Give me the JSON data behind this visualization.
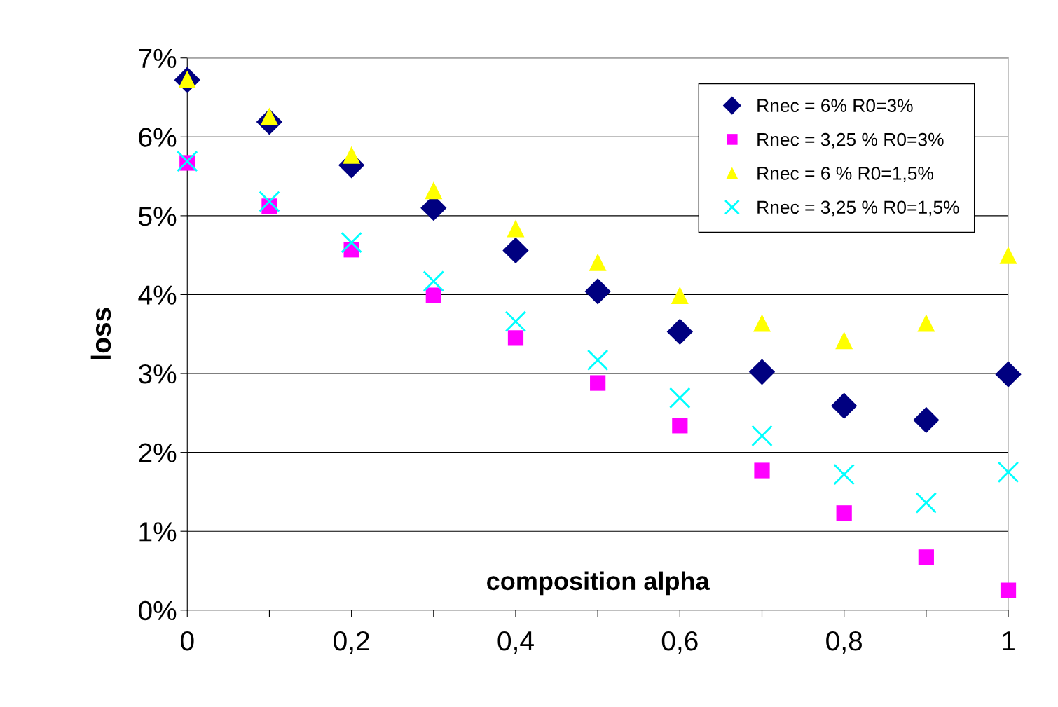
{
  "chart_data": {
    "type": "scatter",
    "xlabel": "composition alpha",
    "ylabel": "loss",
    "x": [
      0,
      0.1,
      0.2,
      0.3,
      0.4,
      0.5,
      0.6,
      0.7,
      0.8,
      0.9,
      1
    ],
    "series": [
      {
        "name": "Rnec = 6% R0=3%",
        "color": "#000080",
        "marker": "diamond",
        "values": [
          6.72,
          6.19,
          5.64,
          5.1,
          4.56,
          4.04,
          3.53,
          3.02,
          2.59,
          2.41,
          2.99
        ]
      },
      {
        "name": "Rnec = 3,25 % R0=3%",
        "color": "#ff00ff",
        "marker": "square",
        "values": [
          5.67,
          5.12,
          4.57,
          3.99,
          3.45,
          2.88,
          2.34,
          1.77,
          1.23,
          0.67,
          0.25
        ]
      },
      {
        "name": "Rnec = 6 % R0=1,5%",
        "color": "#ffff00",
        "marker": "triangle",
        "values": [
          6.73,
          6.26,
          5.77,
          5.32,
          4.84,
          4.41,
          3.99,
          3.64,
          3.42,
          3.64,
          4.5
        ]
      },
      {
        "name": "Rnec = 3,25 % R0=1,5%",
        "color": "#00ffff",
        "marker": "cross",
        "values": [
          5.69,
          5.18,
          4.66,
          4.17,
          3.66,
          3.17,
          2.69,
          2.21,
          1.72,
          1.36,
          1.75
        ]
      }
    ],
    "xlim": [
      0,
      1
    ],
    "ylim": [
      0,
      7
    ],
    "xticks": [
      0,
      {
        "value": 0.1,
        "label": null
      },
      {
        "value": 0.2,
        "label": "0,2"
      },
      {
        "value": 0.3,
        "label": null
      },
      {
        "value": 0.4,
        "label": "0,4"
      },
      {
        "value": 0.5,
        "label": null
      },
      {
        "value": 0.6,
        "label": "0,6"
      },
      {
        "value": 0.7,
        "label": null
      },
      {
        "value": 0.8,
        "label": "0,8"
      },
      {
        "value": 0.9,
        "label": null
      },
      1
    ],
    "yticks": [
      {
        "value": 0,
        "label": "0%"
      },
      {
        "value": 1,
        "label": "1%"
      },
      {
        "value": 2,
        "label": "2%"
      },
      {
        "value": 3,
        "label": "3%"
      },
      {
        "value": 4,
        "label": "4%"
      },
      {
        "value": 5,
        "label": "5%"
      },
      {
        "value": 6,
        "label": "6%"
      },
      {
        "value": 7,
        "label": "7%"
      }
    ],
    "grid": "y",
    "legend": "top right"
  }
}
